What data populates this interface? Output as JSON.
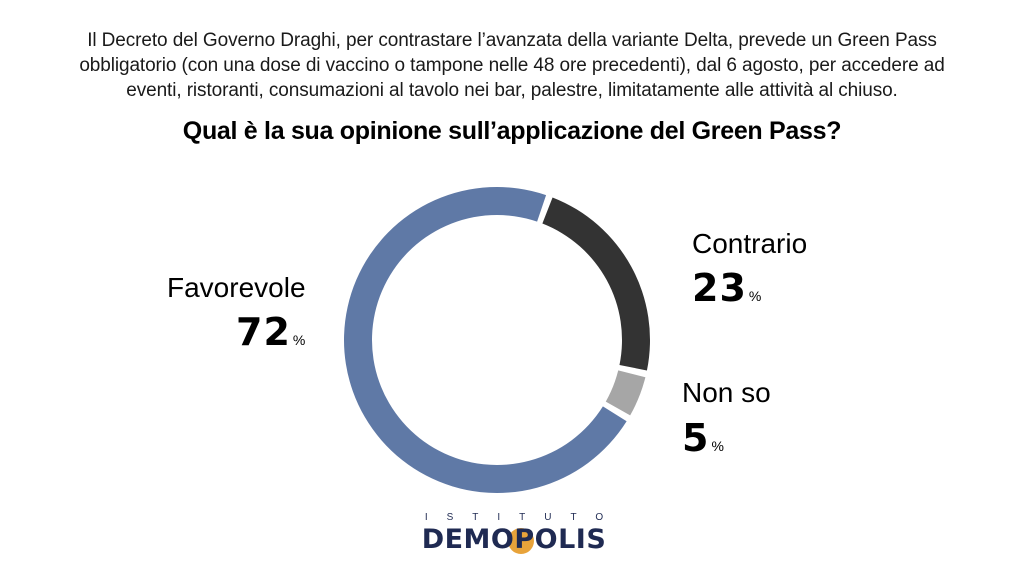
{
  "header": {
    "intro": "Il Decreto del Governo Draghi, per contrastare l’avanzata della variante Delta, prevede un Green Pass obbligatorio (con una dose di vaccino o tampone nelle 48 ore precedenti), dal 6 agosto, per accedere ad eventi, ristoranti, consumazioni al tavolo nei bar, palestre, limitatamente alle attività al chiuso.",
    "question": "Qual è la sua opinione sull’applicazione del Green Pass?"
  },
  "chart_data": {
    "type": "pie",
    "categories": [
      "Favorevole",
      "Contrario",
      "Non so"
    ],
    "values": [
      72,
      23,
      5
    ],
    "display_values": [
      "72",
      "23",
      "5"
    ],
    "unit": "%",
    "colors": [
      "#5f79a6",
      "#333333",
      "#a6a6a6"
    ],
    "title": "Qual è la sua opinione sull’applicazione del Green Pass?"
  },
  "logo": {
    "top": "ISTITUTO",
    "main": "DEMOPOLIS",
    "accent_color": "#e8a33a",
    "brand_color": "#1f2a52"
  }
}
